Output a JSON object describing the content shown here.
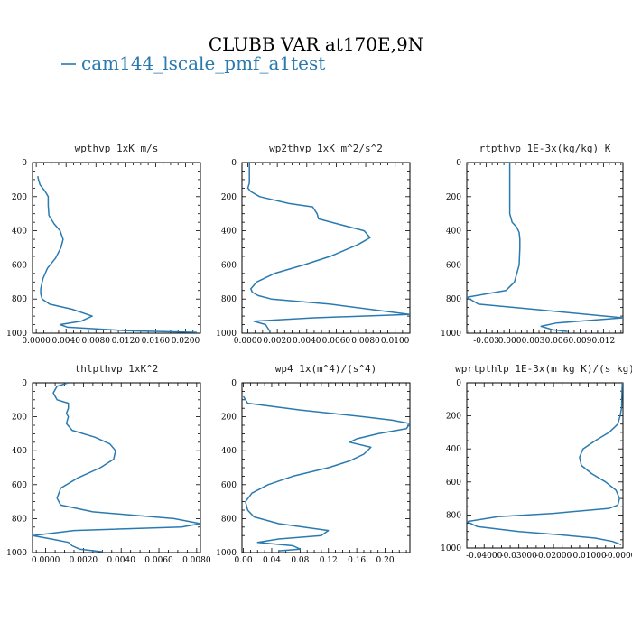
{
  "title": "CLUBB VAR at170E,9N",
  "legend": {
    "label": "cam144_lscale_pmf_a1test",
    "color": "#2a7ab0"
  },
  "chart_data": [
    {
      "type": "line",
      "title": "wpthvp  1xK m/s",
      "xlim": [
        -0.0005,
        0.022
      ],
      "ylim": [
        1000,
        0
      ],
      "xticks": [
        "0.0000",
        "0.0040",
        "0.0080",
        "0.0120",
        "0.0160",
        "0.0200"
      ],
      "xtick_values": [
        0,
        0.004,
        0.008,
        0.012,
        0.016,
        0.02
      ],
      "yticks": [
        "0",
        "200",
        "400",
        "600",
        "800",
        "1000"
      ],
      "series": [
        {
          "x": [
            0.0002,
            0.0003,
            0.0005,
            0.0012,
            0.0016,
            0.0016,
            0.0017,
            0.0024,
            0.0032,
            0.0036,
            0.0033,
            0.0026,
            0.0015,
            0.0009,
            0.0006,
            0.0006,
            0.0008,
            0.0018,
            0.0048,
            0.0075,
            0.006,
            0.0032,
            0.0042,
            0.012,
            0.0215
          ],
          "y": [
            80,
            100,
            130,
            170,
            200,
            250,
            310,
            360,
            400,
            450,
            500,
            560,
            620,
            680,
            740,
            770,
            800,
            830,
            860,
            900,
            930,
            950,
            965,
            985,
            995
          ]
        }
      ]
    },
    {
      "type": "line",
      "title": "wp2thvp  1xK m^2/s^2",
      "xlim": [
        -0.0004,
        0.011
      ],
      "ylim": [
        1000,
        0
      ],
      "xticks": [
        "0.0000",
        "0.0020",
        "0.0040",
        "0.0060",
        "0.0080",
        "0.0100"
      ],
      "xtick_values": [
        0,
        0.002,
        0.004,
        0.006,
        0.008,
        0.01
      ],
      "yticks": [
        "0",
        "200",
        "400",
        "600",
        "800",
        "1000"
      ],
      "series": [
        {
          "x": [
            0.0001,
            0.0001,
            0.0,
            0.0002,
            0.0008,
            0.0028,
            0.0044,
            0.0047,
            0.0048,
            0.0061,
            0.0079,
            0.0083,
            0.0075,
            0.0056,
            0.0038,
            0.0018,
            0.0006,
            0.0002,
            0.0003,
            0.0007,
            0.0016,
            0.0056,
            0.011,
            0.0045,
            0.0004,
            0.0012,
            0.0015
          ],
          "y": [
            0,
            120,
            150,
            170,
            200,
            240,
            260,
            300,
            330,
            360,
            400,
            440,
            480,
            550,
            600,
            650,
            700,
            740,
            760,
            780,
            800,
            830,
            890,
            910,
            930,
            950,
            990
          ]
        }
      ]
    },
    {
      "type": "line",
      "title": "rtpthvp  1E-3x(kg/kg) K",
      "xlim": [
        -0.0055,
        0.0145
      ],
      "ylim": [
        1000,
        0
      ],
      "xticks": [
        "-0.003",
        "0.000",
        "0.003",
        "0.006",
        "0.009",
        "0.012"
      ],
      "xtick_values": [
        -0.003,
        0,
        0.003,
        0.006,
        0.009,
        0.012
      ],
      "yticks": [
        "0",
        "200",
        "400",
        "600",
        "800",
        "1000"
      ],
      "series": [
        {
          "x": [
            0.0,
            0.0,
            0.0,
            0.0003,
            0.0009,
            0.0012,
            0.0013,
            0.0013,
            0.0012,
            0.0006,
            -0.0005,
            -0.0055,
            -0.004,
            0.003,
            0.0145,
            0.006,
            0.004,
            0.0055,
            0.0074
          ],
          "y": [
            0,
            200,
            300,
            350,
            380,
            410,
            450,
            500,
            600,
            700,
            750,
            790,
            830,
            860,
            910,
            940,
            960,
            980,
            990
          ]
        }
      ]
    },
    {
      "type": "line",
      "title": "thlpthvp  1xK^2",
      "xlim": [
        -0.0007,
        0.0082
      ],
      "ylim": [
        1000,
        0
      ],
      "xticks": [
        "0.0000",
        "0.0020",
        "0.0040",
        "0.0060",
        "0.0080"
      ],
      "xtick_values": [
        0,
        0.002,
        0.004,
        0.006,
        0.008
      ],
      "yticks": [
        "0",
        "200",
        "400",
        "600",
        "800",
        "1000"
      ],
      "series": [
        {
          "x": [
            0.0012,
            0.0006,
            0.0004,
            0.0006,
            0.0012,
            0.0012,
            0.0011,
            0.0012,
            0.0011,
            0.0014,
            0.0026,
            0.0034,
            0.0037,
            0.0036,
            0.0029,
            0.0017,
            0.0008,
            0.0006,
            0.0008,
            0.0025,
            0.0068,
            0.0082,
            0.0072,
            0.0015,
            -0.0007,
            0.0003,
            0.0012,
            0.0014,
            0.0018,
            0.003
          ],
          "y": [
            0,
            20,
            60,
            100,
            120,
            150,
            180,
            200,
            240,
            280,
            320,
            360,
            400,
            450,
            500,
            560,
            620,
            680,
            720,
            760,
            800,
            830,
            850,
            870,
            900,
            920,
            940,
            960,
            980,
            995
          ]
        }
      ]
    },
    {
      "type": "line",
      "title": "wp4  1x(m^4)/(s^4)",
      "xlim": [
        -0.002,
        0.235
      ],
      "ylim": [
        1000,
        0
      ],
      "xticks": [
        "0.00",
        "0.04",
        "0.08",
        "0.12",
        "0.16",
        "0.20"
      ],
      "xtick_values": [
        0,
        0.04,
        0.08,
        0.12,
        0.16,
        0.2
      ],
      "yticks": [
        "0",
        "200",
        "400",
        "600",
        "800",
        "1000"
      ],
      "series": [
        {
          "x": [
            0.0,
            0.006,
            0.08,
            0.17,
            0.21,
            0.235,
            0.23,
            0.19,
            0.16,
            0.15,
            0.18,
            0.17,
            0.15,
            0.12,
            0.07,
            0.035,
            0.012,
            0.003,
            0.006,
            0.015,
            0.05,
            0.12,
            0.11,
            0.05,
            0.02,
            0.07,
            0.08,
            0.05
          ],
          "y": [
            80,
            120,
            160,
            200,
            220,
            240,
            270,
            300,
            330,
            350,
            380,
            420,
            460,
            500,
            550,
            600,
            650,
            700,
            750,
            790,
            830,
            870,
            900,
            920,
            940,
            960,
            980,
            990
          ]
        }
      ]
    },
    {
      "type": "line",
      "title": "wprtpthlp  1E-3x(m kg K)/(s kg)",
      "xlim": [
        -0.045,
        0.0
      ],
      "ylim": [
        1000,
        0
      ],
      "xticks": [
        "-0.04000",
        "-0.03000",
        "-0.02000",
        "-0.01000",
        "-0.00000"
      ],
      "xtick_values": [
        -0.04,
        -0.03,
        -0.02,
        -0.01,
        0
      ],
      "yticks": [
        "0",
        "200",
        "400",
        "600",
        "800",
        "1000"
      ],
      "series": [
        {
          "x": [
            -0.0002,
            -0.0004,
            -0.0008,
            -0.0015,
            -0.004,
            -0.008,
            -0.0115,
            -0.0125,
            -0.012,
            -0.009,
            -0.005,
            -0.002,
            -0.001,
            -0.0015,
            -0.004,
            -0.02,
            -0.036,
            -0.045,
            -0.042,
            -0.03,
            -0.018,
            -0.008,
            -0.003,
            -0.0005
          ],
          "y": [
            0,
            150,
            200,
            250,
            300,
            350,
            400,
            450,
            500,
            550,
            600,
            650,
            700,
            740,
            760,
            790,
            810,
            840,
            870,
            900,
            920,
            940,
            960,
            980
          ]
        }
      ]
    }
  ]
}
